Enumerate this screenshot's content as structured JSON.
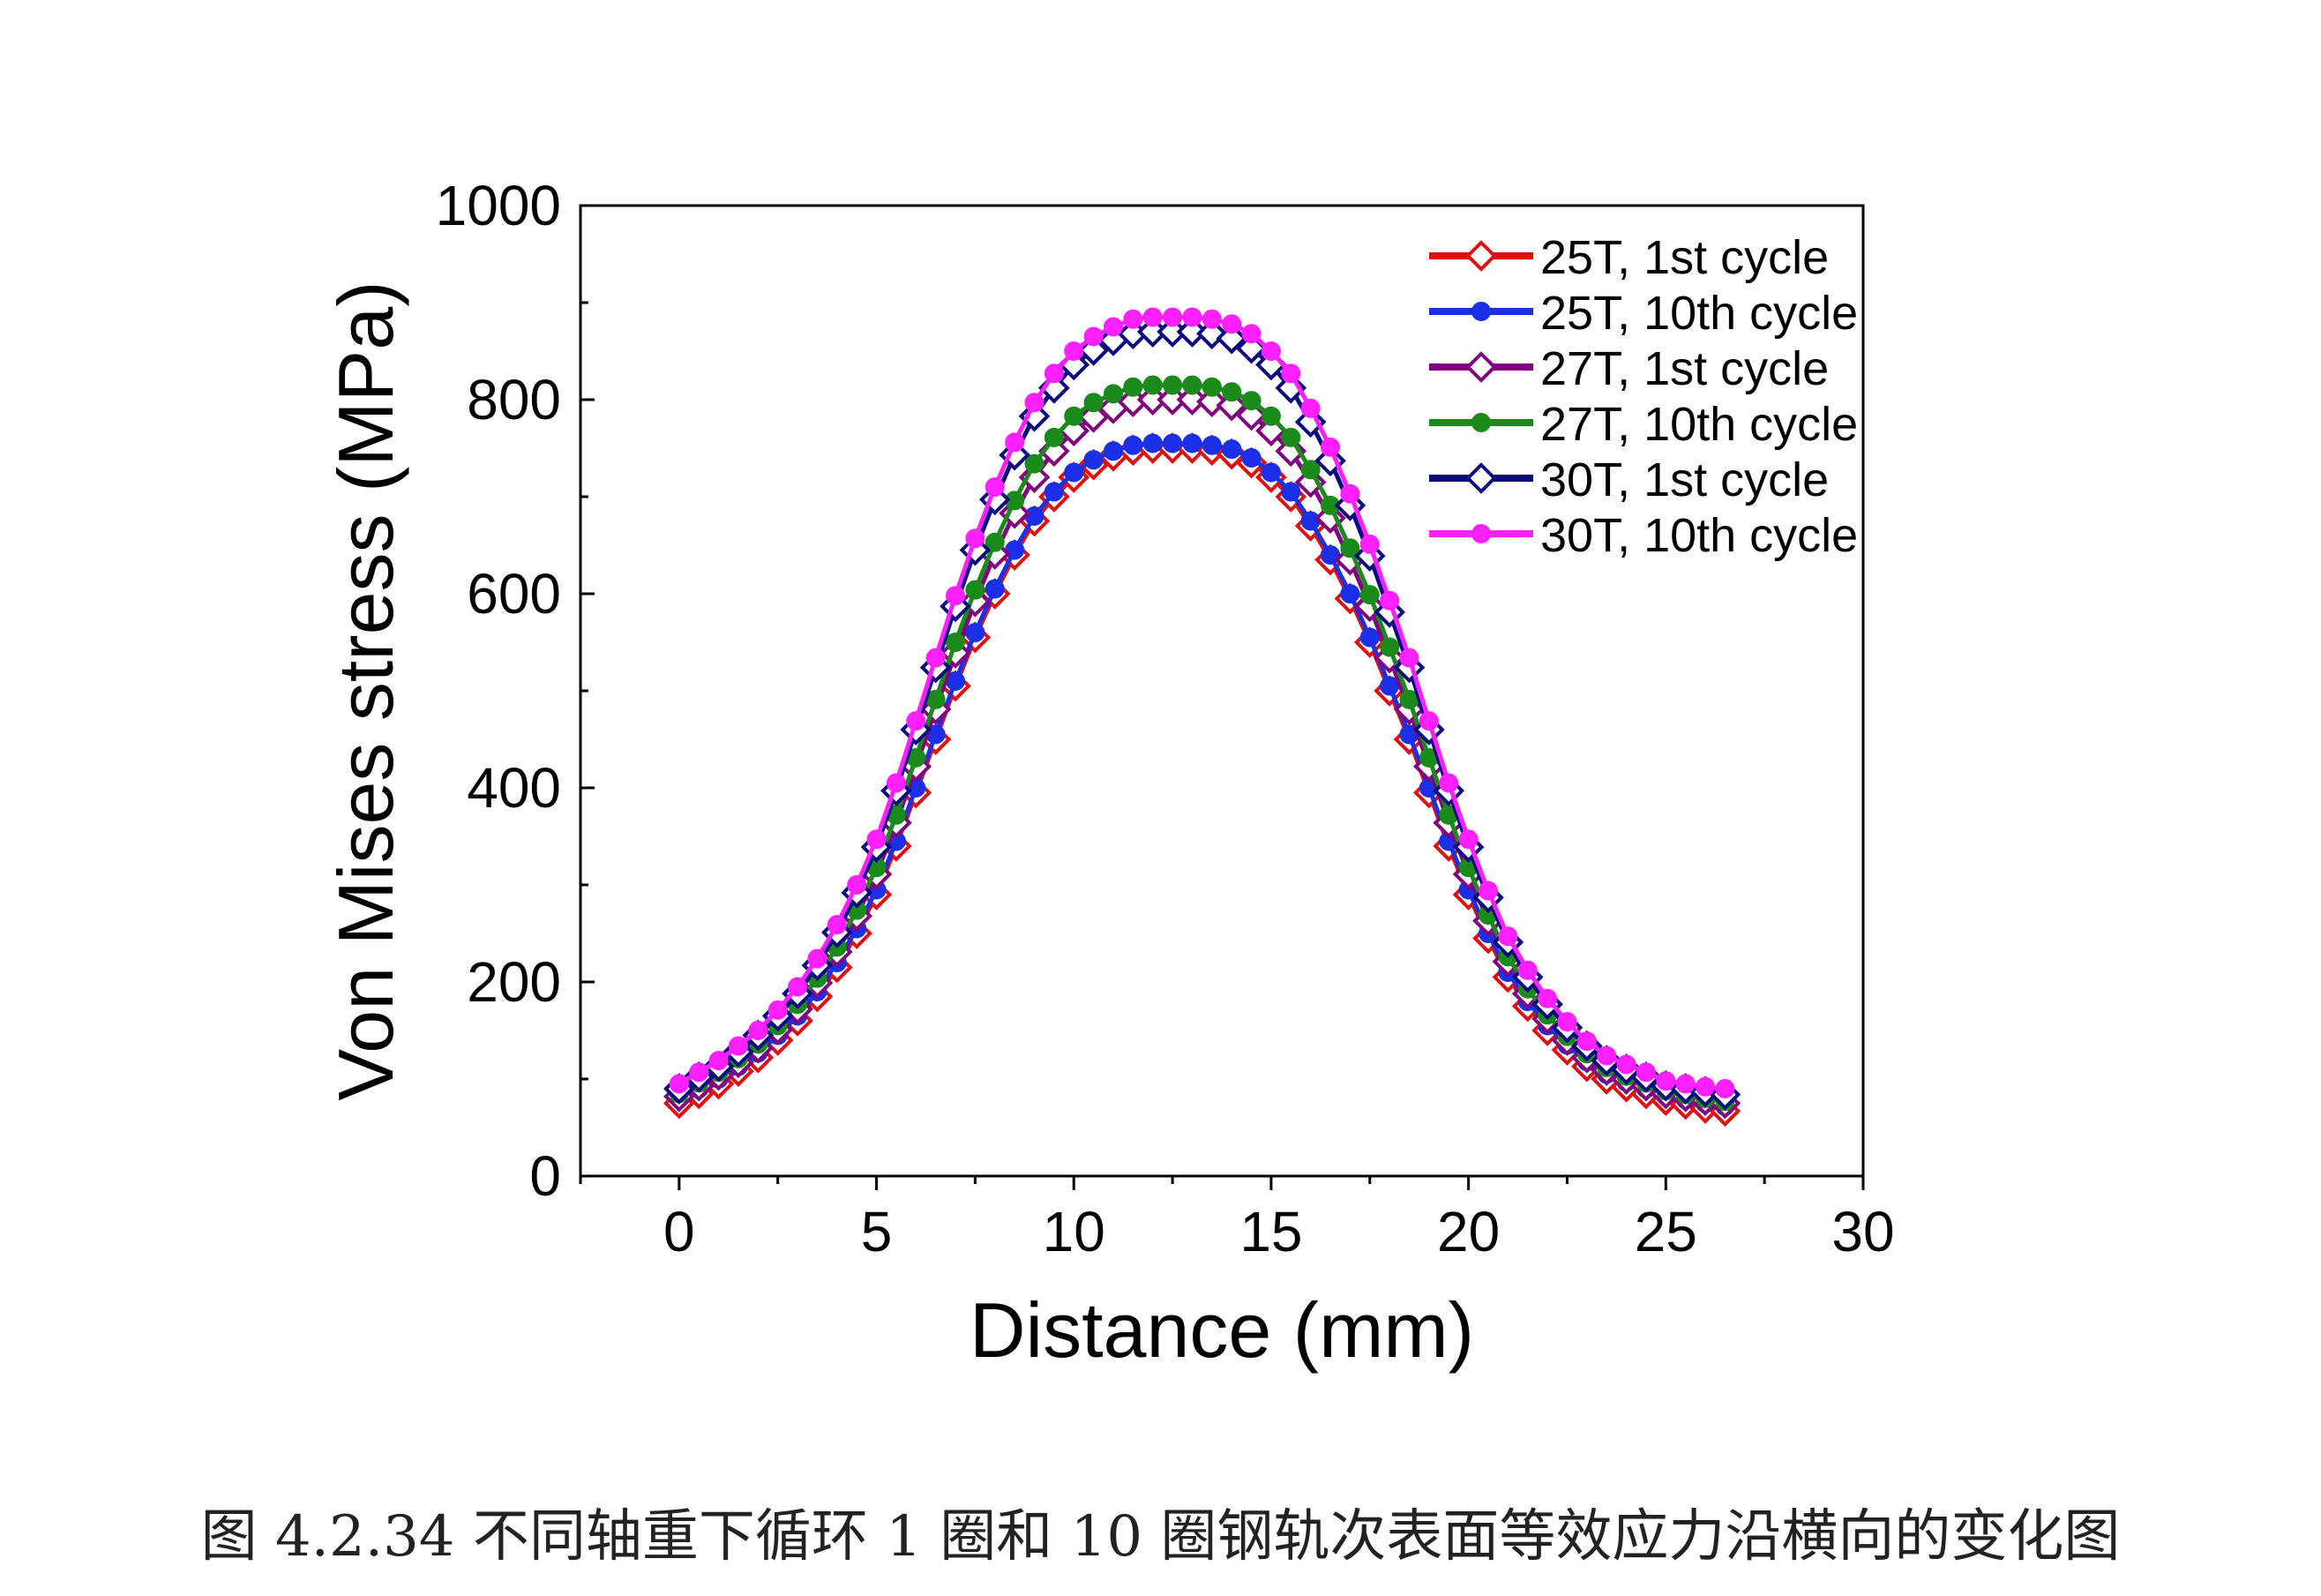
{
  "chart_data": {
    "type": "line",
    "xlabel": "Distance (mm)",
    "ylabel": "Von Mises stress (MPa)",
    "xlim": [
      -2.5,
      30
    ],
    "ylim": [
      0,
      1000
    ],
    "xticks": [
      0,
      5,
      10,
      15,
      20,
      25,
      30
    ],
    "yticks": [
      0,
      200,
      400,
      600,
      800,
      1000
    ],
    "grid": false,
    "legend_position": "top-right",
    "x": [
      0,
      0.5,
      1,
      1.5,
      2,
      2.5,
      3,
      3.5,
      4,
      4.5,
      5,
      5.5,
      6,
      6.5,
      7,
      7.5,
      8,
      8.5,
      9,
      9.5,
      10,
      10.5,
      11,
      11.5,
      12,
      12.5,
      13,
      13.5,
      14,
      14.5,
      15,
      15.5,
      16,
      16.5,
      17,
      17.5,
      18,
      18.5,
      19,
      19.5,
      20,
      20.5,
      21,
      21.5,
      22,
      22.5,
      23,
      23.5,
      24,
      24.5,
      25,
      25.5,
      26,
      26.5
    ],
    "series": [
      {
        "name": "25T, 1st cycle",
        "color": "#e01010",
        "marker": "open-diamond",
        "values": [
          75,
          85,
          95,
          108,
          122,
          140,
          160,
          185,
          215,
          250,
          290,
          340,
          395,
          450,
          505,
          555,
          600,
          640,
          675,
          700,
          720,
          733,
          742,
          748,
          750,
          750,
          750,
          748,
          744,
          735,
          720,
          700,
          670,
          635,
          595,
          550,
          500,
          450,
          395,
          340,
          290,
          245,
          205,
          175,
          150,
          130,
          113,
          100,
          92,
          85,
          78,
          74,
          70,
          67
        ]
      },
      {
        "name": "25T, 10th cycle",
        "color": "#1a2fe6",
        "marker": "filled-circle",
        "values": [
          80,
          90,
          100,
          113,
          127,
          145,
          165,
          190,
          220,
          255,
          295,
          345,
          400,
          455,
          510,
          560,
          605,
          645,
          680,
          705,
          725,
          738,
          747,
          753,
          755,
          755,
          755,
          753,
          749,
          740,
          725,
          705,
          675,
          640,
          600,
          555,
          505,
          455,
          400,
          345,
          295,
          250,
          210,
          180,
          155,
          135,
          118,
          105,
          97,
          90,
          83,
          79,
          75,
          72
        ]
      },
      {
        "name": "27T, 1st cycle",
        "color": "#800080",
        "marker": "open-diamond",
        "values": [
          82,
          93,
          104,
          117,
          132,
          151,
          172,
          199,
          231,
          268,
          311,
          364,
          422,
          481,
          539,
          592,
          641,
          683,
          720,
          747,
          768,
          782,
          791,
          798,
          800,
          800,
          800,
          798,
          794,
          784,
          768,
          747,
          715,
          678,
          635,
          587,
          534,
          481,
          422,
          364,
          311,
          263,
          221,
          188,
          162,
          140,
          122,
          109,
          100,
          93,
          85,
          82,
          78,
          75
        ]
      },
      {
        "name": "27T, 10th cycle",
        "color": "#1a8a1a",
        "marker": "filled-circle",
        "values": [
          85,
          96,
          107,
          121,
          136,
          155,
          177,
          204,
          236,
          274,
          318,
          372,
          431,
          491,
          550,
          604,
          653,
          696,
          734,
          761,
          783,
          797,
          806,
          813,
          815,
          815,
          815,
          813,
          808,
          799,
          783,
          761,
          728,
          691,
          647,
          599,
          545,
          491,
          431,
          372,
          318,
          269,
          226,
          193,
          166,
          144,
          126,
          112,
          103,
          96,
          88,
          84,
          80,
          77
        ]
      },
      {
        "name": "30T, 1st cycle",
        "color": "#0a0a80",
        "marker": "open-diamond",
        "values": [
          90,
          102,
          113,
          128,
          145,
          165,
          188,
          217,
          251,
          292,
          339,
          397,
          460,
          524,
          587,
          645,
          697,
          743,
          783,
          812,
          836,
          851,
          861,
          868,
          870,
          870,
          870,
          868,
          863,
          853,
          836,
          812,
          777,
          737,
          691,
          639,
          581,
          524,
          460,
          397,
          339,
          287,
          241,
          205,
          177,
          153,
          134,
          119,
          110,
          102,
          93,
          90,
          87,
          84
        ]
      },
      {
        "name": "30T, 10th cycle",
        "color": "#ff20ff",
        "marker": "filled-circle",
        "values": [
          95,
          107,
          119,
          134,
          150,
          171,
          195,
          224,
          259,
          300,
          347,
          405,
          469,
          534,
          598,
          657,
          710,
          756,
          797,
          827,
          850,
          865,
          875,
          883,
          885,
          885,
          885,
          883,
          878,
          868,
          850,
          827,
          791,
          751,
          703,
          651,
          593,
          534,
          469,
          405,
          347,
          294,
          247,
          212,
          183,
          159,
          139,
          124,
          115,
          107,
          98,
          95,
          92,
          90
        ]
      }
    ]
  },
  "caption": "图 4.2.34 不同轴重下循环 1 圈和 10 圈钢轨次表面等效应力沿横向的变化图"
}
